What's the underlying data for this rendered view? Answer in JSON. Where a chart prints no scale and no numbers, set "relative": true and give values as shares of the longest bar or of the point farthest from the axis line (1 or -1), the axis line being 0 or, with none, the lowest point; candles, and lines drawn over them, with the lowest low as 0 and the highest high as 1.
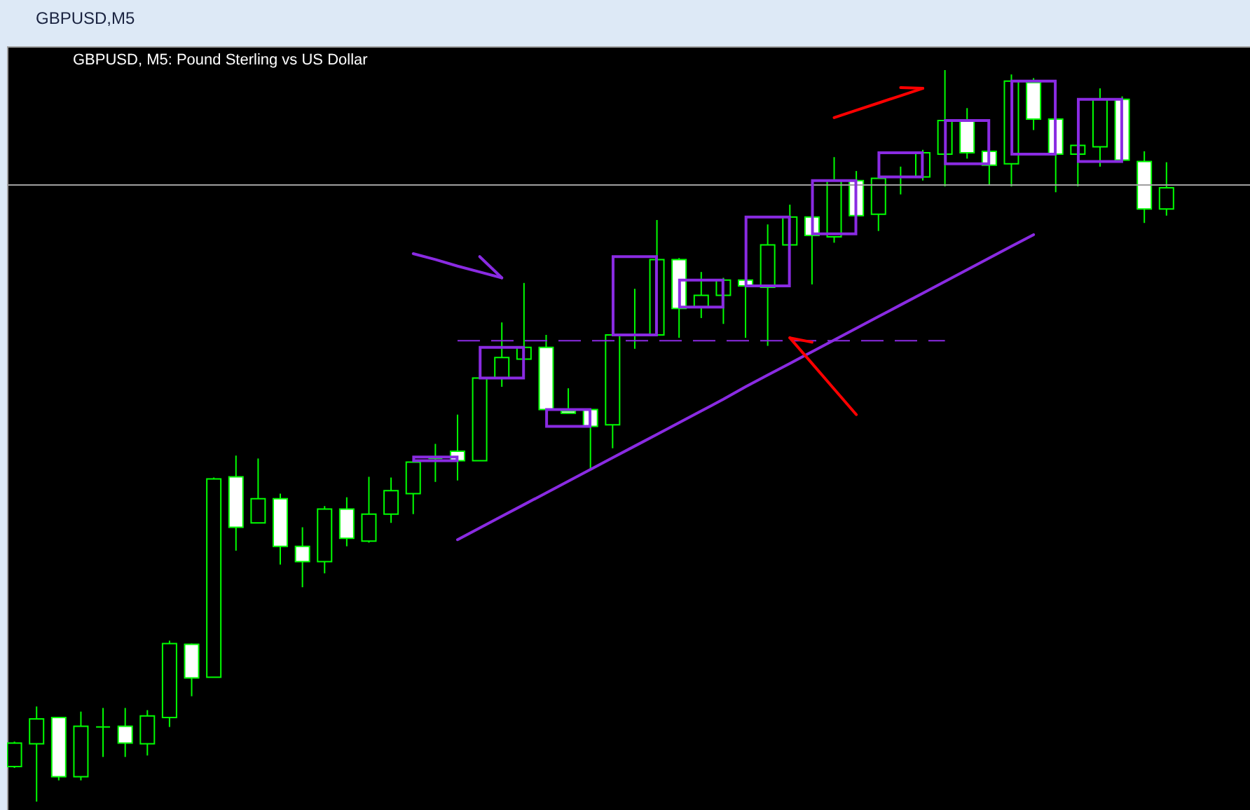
{
  "chart_data": {
    "type": "candlestick",
    "title": "GBPUSD,M5",
    "subtitle": "GBPUSD, M5: Pound Sterling vs US Dollar",
    "relative": true,
    "tick_labels": false,
    "color": "#00ff00",
    "categories": [
      null,
      null,
      null,
      null,
      null,
      null,
      null,
      null,
      null,
      null,
      null,
      null,
      null,
      null,
      null,
      null,
      null,
      null,
      null,
      null,
      null,
      null,
      null,
      null,
      null,
      null,
      null,
      null,
      null,
      null,
      null,
      null,
      null,
      null,
      null,
      null,
      null,
      null,
      null,
      null,
      null,
      null,
      null,
      null,
      null,
      null,
      null,
      null,
      null,
      null,
      null,
      null,
      null
    ],
    "ohlc": [
      [
        0.048,
        0.082,
        0.046,
        0.08
      ],
      [
        0.079,
        0.13,
        0.0,
        0.113
      ],
      [
        0.115,
        0.115,
        0.029,
        0.034
      ],
      [
        0.034,
        0.123,
        0.029,
        0.103
      ],
      [
        0.102,
        0.128,
        0.061,
        0.102
      ],
      [
        0.103,
        0.128,
        0.061,
        0.08
      ],
      [
        0.079,
        0.125,
        0.063,
        0.117
      ],
      [
        0.115,
        0.22,
        0.102,
        0.216
      ],
      [
        0.215,
        0.216,
        0.144,
        0.169
      ],
      [
        0.17,
        0.443,
        0.17,
        0.441
      ],
      [
        0.444,
        0.473,
        0.343,
        0.375
      ],
      [
        0.381,
        0.469,
        0.381,
        0.414
      ],
      [
        0.414,
        0.421,
        0.324,
        0.349
      ],
      [
        0.349,
        0.375,
        0.293,
        0.328
      ],
      [
        0.328,
        0.404,
        0.312,
        0.4
      ],
      [
        0.4,
        0.416,
        0.349,
        0.36
      ],
      [
        0.356,
        0.444,
        0.354,
        0.393
      ],
      [
        0.393,
        0.443,
        0.381,
        0.425
      ],
      [
        0.421,
        0.464,
        0.393,
        0.464
      ],
      [
        0.469,
        0.489,
        0.437,
        0.469
      ],
      [
        0.479,
        0.529,
        0.439,
        0.466
      ],
      [
        0.466,
        0.579,
        0.466,
        0.579
      ],
      [
        0.579,
        0.655,
        0.567,
        0.607
      ],
      [
        0.605,
        0.709,
        0.605,
        0.621
      ],
      [
        0.621,
        0.638,
        0.536,
        0.536
      ],
      [
        0.534,
        0.565,
        0.531,
        0.531
      ],
      [
        0.536,
        0.536,
        0.454,
        0.513
      ],
      [
        0.515,
        0.638,
        0.483,
        0.638
      ],
      [
        0.638,
        0.701,
        0.619,
        0.638
      ],
      [
        0.638,
        0.795,
        0.638,
        0.741
      ],
      [
        0.741,
        0.743,
        0.634,
        0.674
      ],
      [
        0.676,
        0.724,
        0.661,
        0.692
      ],
      [
        0.692,
        0.716,
        0.653,
        0.713
      ],
      [
        0.713,
        0.713,
        0.634,
        0.705
      ],
      [
        0.703,
        0.789,
        0.623,
        0.761
      ],
      [
        0.761,
        0.816,
        0.761,
        0.799
      ],
      [
        0.799,
        0.799,
        0.707,
        0.774
      ],
      [
        0.772,
        0.881,
        0.764,
        0.849
      ],
      [
        0.849,
        0.862,
        0.801,
        0.801
      ],
      [
        0.803,
        0.852,
        0.78,
        0.852
      ],
      [
        0.854,
        0.868,
        0.83,
        0.854
      ],
      [
        0.854,
        0.891,
        0.849,
        0.887
      ],
      [
        0.885,
        1.0,
        0.841,
        0.931
      ],
      [
        0.931,
        0.948,
        0.879,
        0.887
      ],
      [
        0.889,
        0.889,
        0.843,
        0.87
      ],
      [
        0.872,
        0.994,
        0.841,
        0.985
      ],
      [
        0.983,
        0.989,
        0.918,
        0.933
      ],
      [
        0.933,
        0.933,
        0.833,
        0.885
      ],
      [
        0.885,
        0.897,
        0.841,
        0.897
      ],
      [
        0.895,
        0.975,
        0.868,
        0.96
      ],
      [
        0.96,
        0.964,
        0.877,
        0.877
      ],
      [
        0.875,
        0.889,
        0.791,
        0.81
      ],
      [
        0.81,
        0.874,
        0.801,
        0.839
      ]
    ],
    "colors": [
      "#000000",
      "#000000",
      "#ffffff",
      "#000000",
      "#00ff00",
      "#ffffff",
      "#000000",
      "#000000",
      "#ffffff",
      "#000000",
      "#ffffff",
      "#000000",
      "#ffffff",
      "#ffffff",
      "#000000",
      "#ffffff",
      "#000000",
      "#000000",
      "#000000",
      "#00ff00",
      "#ffffff",
      "#000000",
      "#000000",
      "#000000",
      "#ffffff",
      "#ffffff",
      "#ffffff",
      "#000000",
      "#00ff00",
      "#000000",
      "#ffffff",
      "#000000",
      "#000000",
      "#ffffff",
      "#000000",
      "#000000",
      "#ffffff",
      "#000000",
      "#ffffff",
      "#000000",
      "#00ff00",
      "#000000",
      "#000000",
      "#ffffff",
      "#ffffff",
      "#000000",
      "#ffffff",
      "#ffffff",
      "#000000",
      "#000000",
      "#ffffff",
      "#ffffff",
      "#000000"
    ],
    "series": [
      {
        "type": "line",
        "color": "#8a2be2",
        "line_style": "solid",
        "values": [
          null,
          null,
          null,
          null,
          null,
          null,
          null,
          null,
          null,
          null,
          null,
          null,
          null,
          null,
          null,
          null,
          null,
          null,
          null,
          null,
          0.358,
          0.374,
          0.39,
          0.406,
          0.422,
          0.438,
          0.454,
          0.47,
          0.486,
          0.502,
          0.518,
          0.534,
          0.55,
          0.567,
          0.583,
          0.599,
          0.615,
          0.631,
          0.647,
          0.663,
          0.679,
          0.695,
          0.711,
          0.727,
          0.743,
          0.759,
          0.775,
          null,
          null,
          null,
          null,
          null,
          null
        ]
      },
      {
        "type": "line",
        "color": "#8a2be2",
        "line_style": "dashed",
        "values": [
          null,
          null,
          null,
          null,
          null,
          null,
          null,
          null,
          null,
          null,
          null,
          null,
          null,
          null,
          null,
          null,
          null,
          null,
          null,
          null,
          0.63,
          0.63,
          0.63,
          0.63,
          0.63,
          0.63,
          0.63,
          0.63,
          0.63,
          0.63,
          0.63,
          0.63,
          0.63,
          0.63,
          0.63,
          0.63,
          0.63,
          0.63,
          0.63,
          0.63,
          0.63,
          0.63,
          0.63,
          null,
          null,
          null,
          null,
          null,
          null,
          null,
          null,
          null,
          null
        ]
      },
      {
        "type": "bar",
        "color": "#8a2be2",
        "base": [
          null,
          null,
          null,
          null,
          null,
          null,
          null,
          null,
          null,
          null,
          null,
          null,
          null,
          null,
          null,
          null,
          null,
          null,
          null,
          0.466,
          null,
          null,
          0.579,
          null,
          null,
          0.513,
          null,
          null,
          0.638,
          null,
          null,
          0.676,
          null,
          null,
          0.705,
          null,
          null,
          0.776,
          null,
          null,
          0.854,
          null,
          null,
          0.872,
          null,
          null,
          0.885,
          null,
          null,
          0.875,
          null,
          null,
          null
        ],
        "values": [
          null,
          null,
          null,
          null,
          null,
          null,
          null,
          null,
          null,
          null,
          null,
          null,
          null,
          null,
          null,
          null,
          null,
          null,
          null,
          0.005,
          null,
          null,
          0.042,
          null,
          null,
          0.023,
          null,
          null,
          0.107,
          null,
          null,
          0.037,
          null,
          null,
          0.094,
          null,
          null,
          0.073,
          null,
          null,
          0.033,
          null,
          null,
          0.059,
          null,
          null,
          0.1,
          null,
          null,
          0.085,
          null,
          null,
          null
        ]
      },
      {
        "type": "line",
        "color": "#8a2be2",
        "line_style": "solid",
        "values": [
          null,
          null,
          null,
          null,
          null,
          null,
          null,
          null,
          null,
          null,
          null,
          null,
          null,
          null,
          null,
          null,
          null,
          null,
          0.749,
          0.741,
          0.732,
          0.724,
          0.716,
          null,
          null,
          null,
          null,
          null,
          null,
          null,
          null,
          null,
          null,
          null,
          null,
          null,
          null,
          null,
          null,
          null,
          null,
          null,
          null,
          null,
          null,
          null,
          null,
          null,
          null,
          null,
          null,
          null,
          null
        ]
      },
      {
        "type": "line",
        "color": "#8a2be2",
        "line_style": "solid",
        "values": [
          null,
          null,
          null,
          null,
          null,
          null,
          null,
          null,
          null,
          null,
          null,
          null,
          null,
          null,
          null,
          null,
          null,
          null,
          null,
          null,
          null,
          0.745,
          0.716,
          null,
          null,
          null,
          null,
          null,
          null,
          null,
          null,
          null,
          null,
          null,
          null,
          null,
          null,
          null,
          null,
          null,
          null,
          null,
          null,
          null,
          null,
          null,
          null,
          null,
          null,
          null,
          null,
          null,
          null
        ]
      },
      {
        "type": "line",
        "color": "#ff0000",
        "line_style": "solid",
        "values": [
          null,
          null,
          null,
          null,
          null,
          null,
          null,
          null,
          null,
          null,
          null,
          null,
          null,
          null,
          null,
          null,
          null,
          null,
          null,
          null,
          null,
          null,
          null,
          null,
          null,
          null,
          null,
          null,
          null,
          null,
          null,
          null,
          null,
          null,
          null,
          0.634,
          0.599,
          0.564,
          0.529,
          null,
          null,
          null,
          null,
          null,
          null,
          null,
          null,
          null,
          null,
          null,
          null,
          null,
          null
        ]
      },
      {
        "type": "line",
        "color": "#ff0000",
        "line_style": "solid",
        "values": [
          null,
          null,
          null,
          null,
          null,
          null,
          null,
          null,
          null,
          null,
          null,
          null,
          null,
          null,
          null,
          null,
          null,
          null,
          null,
          null,
          null,
          null,
          null,
          null,
          null,
          null,
          null,
          null,
          null,
          null,
          null,
          null,
          null,
          null,
          null,
          0.634,
          0.628,
          null,
          null,
          null,
          null,
          null,
          null,
          null,
          null,
          null,
          null,
          null,
          null,
          null,
          null,
          null,
          null
        ]
      },
      {
        "type": "line",
        "color": "#ff0000",
        "line_style": "solid",
        "values": [
          null,
          null,
          null,
          null,
          null,
          null,
          null,
          null,
          null,
          null,
          null,
          null,
          null,
          null,
          null,
          null,
          null,
          null,
          null,
          null,
          null,
          null,
          null,
          null,
          null,
          null,
          null,
          null,
          null,
          null,
          null,
          null,
          null,
          null,
          null,
          null,
          null,
          0.935,
          0.945,
          0.955,
          0.965,
          0.975,
          null,
          null,
          null,
          null,
          null,
          null,
          null,
          null,
          null,
          null,
          null
        ]
      },
      {
        "type": "line",
        "color": "#ff0000",
        "line_style": "solid",
        "values": [
          null,
          null,
          null,
          null,
          null,
          null,
          null,
          null,
          null,
          null,
          null,
          null,
          null,
          null,
          null,
          null,
          null,
          null,
          null,
          null,
          null,
          null,
          null,
          null,
          null,
          null,
          null,
          null,
          null,
          null,
          null,
          null,
          null,
          null,
          null,
          null,
          null,
          null,
          null,
          null,
          0.976,
          0.975,
          null,
          null,
          null,
          null,
          null,
          null,
          null,
          null,
          null,
          null,
          null
        ]
      }
    ],
    "ref_lines": [
      {
        "axis": "y",
        "value": 0.843,
        "color": "#a0a0a0"
      }
    ]
  }
}
